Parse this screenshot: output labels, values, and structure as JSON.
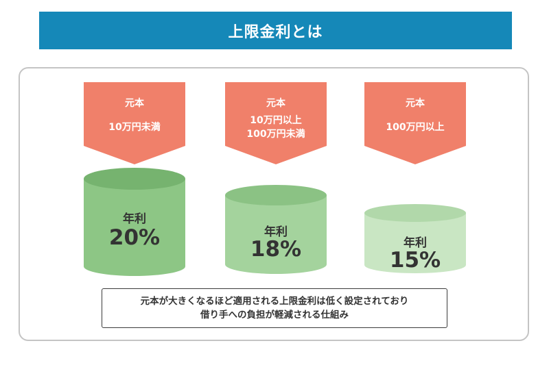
{
  "title": "上限金利とは",
  "colors": {
    "title_bg": "#1588b8",
    "banner": "#f0806a",
    "tier1_body": "#8dc685",
    "tier1_top": "#76b36f",
    "tier2_body": "#a4d39d",
    "tier2_top": "#8bc284",
    "tier3_body": "#c9e6c3",
    "tier3_top": "#b1d8aa"
  },
  "tiers": [
    {
      "principal_label": "元本",
      "range": [
        "10万円未満"
      ],
      "rate_label": "年利",
      "rate": "20%"
    },
    {
      "principal_label": "元本",
      "range": [
        "10万円以上",
        "100万円未満"
      ],
      "rate_label": "年利",
      "rate": "18%"
    },
    {
      "principal_label": "元本",
      "range": [
        "100万円以上"
      ],
      "rate_label": "年利",
      "rate": "15%"
    }
  ],
  "note": {
    "line1": "元本が大きくなるほど適用される上限金利は低く設定されており",
    "line2": "借り手への負担が軽減される仕組み"
  }
}
